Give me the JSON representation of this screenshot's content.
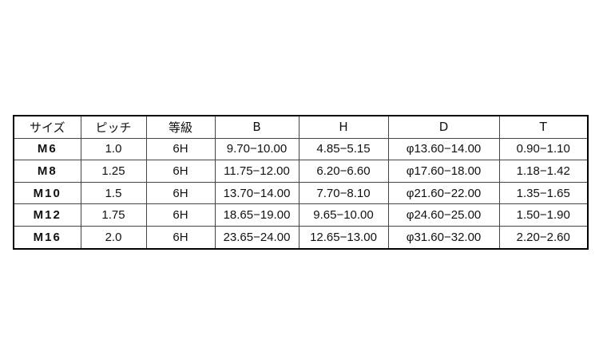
{
  "table": {
    "headers": [
      "サイズ",
      "ピッチ",
      "等級",
      "B",
      "H",
      "D",
      "T"
    ],
    "rows": [
      [
        "M6",
        "1.0",
        "6H",
        "9.70−10.00",
        "4.85−5.15",
        "φ13.60−14.00",
        "0.90−1.10"
      ],
      [
        "M8",
        "1.25",
        "6H",
        "11.75−12.00",
        "6.20−6.60",
        "φ17.60−18.00",
        "1.18−1.42"
      ],
      [
        "M10",
        "1.5",
        "6H",
        "13.70−14.00",
        "7.70−8.10",
        "φ21.60−22.00",
        "1.35−1.65"
      ],
      [
        "M12",
        "1.75",
        "6H",
        "18.65−19.00",
        "9.65−10.00",
        "φ24.60−25.00",
        "1.50−1.90"
      ],
      [
        "M16",
        "2.0",
        "6H",
        "23.65−24.00",
        "12.65−13.00",
        "φ31.60−32.00",
        "2.20−2.60"
      ]
    ]
  }
}
